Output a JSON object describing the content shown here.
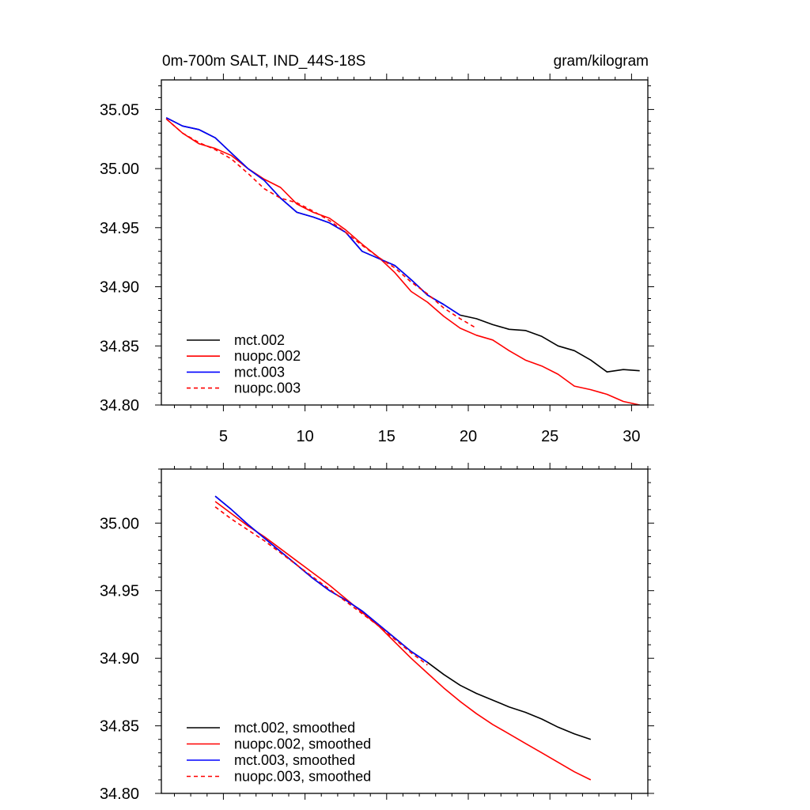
{
  "figure": {
    "title_left": "0m-700m SALT, IND_44S-18S",
    "title_right": "gram/kilogram"
  },
  "chart_data": [
    {
      "type": "line",
      "name": "raw",
      "xlim": [
        1.2,
        31
      ],
      "ylim": [
        34.8,
        35.075
      ],
      "x_ticks": [
        5,
        10,
        15,
        20,
        25,
        30
      ],
      "x_tick_labels": [
        "5",
        "10",
        "15",
        "20",
        "25",
        "30"
      ],
      "y_ticks": [
        34.8,
        34.85,
        34.9,
        34.95,
        35.0,
        35.05
      ],
      "y_tick_labels": [
        "34.80",
        "34.85",
        "34.90",
        "34.95",
        "35.00",
        "35.05"
      ],
      "legend_position": "bottom-left",
      "series": [
        {
          "name": "mct.002",
          "label": "mct.002",
          "color": "#000000",
          "dash": "solid",
          "x": [
            1.5,
            2.5,
            3.5,
            4.5,
            5.5,
            6.5,
            7.5,
            8.5,
            9.5,
            10.5,
            11.5,
            12.5,
            13.5,
            14.5,
            15.5,
            16.5,
            17.5,
            18.5,
            19.5,
            20.5,
            21.5,
            22.5,
            23.5,
            24.5,
            25.5,
            26.5,
            27.5,
            28.5,
            29.5,
            30.5
          ],
          "y": [
            35.043,
            35.036,
            35.033,
            35.026,
            35.013,
            35.0,
            34.99,
            34.975,
            34.963,
            34.959,
            34.954,
            34.946,
            34.93,
            34.924,
            34.918,
            34.906,
            34.893,
            34.885,
            34.876,
            34.873,
            34.868,
            34.864,
            34.863,
            34.858,
            34.85,
            34.846,
            34.838,
            34.828,
            34.83,
            34.829
          ]
        },
        {
          "name": "nuopc.002",
          "label": "nuopc.002",
          "color": "#ff0000",
          "dash": "solid",
          "x": [
            1.5,
            2.5,
            3.5,
            4.5,
            5.5,
            6.5,
            7.5,
            8.5,
            9.5,
            10.5,
            11.5,
            12.5,
            13.5,
            14.5,
            15.5,
            16.5,
            17.5,
            18.5,
            19.5,
            20.5,
            21.5,
            22.5,
            23.5,
            24.5,
            25.5,
            26.5,
            27.5,
            28.5,
            29.5,
            30.5
          ],
          "y": [
            35.042,
            35.03,
            35.021,
            35.017,
            35.011,
            35.0,
            34.991,
            34.984,
            34.97,
            34.963,
            34.958,
            34.948,
            34.936,
            34.925,
            34.912,
            34.896,
            34.887,
            34.875,
            34.865,
            34.859,
            34.855,
            34.846,
            34.838,
            34.833,
            34.826,
            34.816,
            34.813,
            34.809,
            34.803,
            34.8
          ]
        },
        {
          "name": "mct.003",
          "label": "mct.003",
          "color": "#0000ff",
          "dash": "solid",
          "x": [
            1.5,
            2.5,
            3.5,
            4.5,
            5.5,
            6.5,
            7.5,
            8.5,
            9.5,
            10.5,
            11.5,
            12.5,
            13.5,
            14.5,
            15.5,
            16.5,
            17.5,
            18.5,
            19.5
          ],
          "y": [
            35.043,
            35.036,
            35.033,
            35.026,
            35.013,
            35.0,
            34.99,
            34.975,
            34.963,
            34.959,
            34.954,
            34.946,
            34.93,
            34.924,
            34.918,
            34.906,
            34.893,
            34.885,
            34.876
          ]
        },
        {
          "name": "nuopc.003",
          "label": "nuopc.003",
          "color": "#ff0000",
          "dash": "dashed",
          "x": [
            1.5,
            2.5,
            3.5,
            4.5,
            5.5,
            6.5,
            7.5,
            8.5,
            9.5,
            10.5,
            11.5,
            12.5,
            13.5,
            14.5,
            15.5,
            16.5,
            17.5,
            18.5,
            19.5,
            20.5
          ],
          "y": [
            35.042,
            35.03,
            35.022,
            35.016,
            35.008,
            34.996,
            34.983,
            34.975,
            34.971,
            34.964,
            34.956,
            34.946,
            34.935,
            34.925,
            34.916,
            34.904,
            34.894,
            34.882,
            34.873,
            34.865
          ]
        }
      ]
    },
    {
      "type": "line",
      "name": "smoothed",
      "xlim": [
        1.2,
        31
      ],
      "ylim": [
        34.8,
        35.04
      ],
      "x_ticks": [
        5,
        10,
        15,
        20,
        25,
        30
      ],
      "y_ticks": [
        34.8,
        34.85,
        34.9,
        34.95,
        35.0
      ],
      "y_tick_labels": [
        "34.80",
        "34.85",
        "34.90",
        "34.95",
        "35.00"
      ],
      "legend_position": "bottom-left",
      "series": [
        {
          "name": "mct.002-smoothed",
          "label": "mct.002, smoothed",
          "color": "#000000",
          "dash": "solid",
          "x": [
            4.5,
            5.5,
            6.5,
            7.5,
            8.5,
            9.5,
            10.5,
            11.5,
            12.5,
            13.5,
            14.5,
            15.5,
            16.5,
            17.5,
            18.5,
            19.5,
            20.5,
            21.5,
            22.5,
            23.5,
            24.5,
            25.5,
            26.5,
            27.5
          ],
          "y": [
            35.02,
            35.01,
            34.999,
            34.989,
            34.979,
            34.969,
            34.959,
            34.95,
            34.943,
            34.935,
            34.925,
            34.915,
            34.905,
            34.897,
            34.888,
            34.88,
            34.874,
            34.869,
            34.864,
            34.86,
            34.855,
            34.849,
            34.844,
            34.84
          ]
        },
        {
          "name": "nuopc.002-smoothed",
          "label": "nuopc.002, smoothed",
          "color": "#ff0000",
          "dash": "solid",
          "x": [
            4.5,
            5.5,
            6.5,
            7.5,
            8.5,
            9.5,
            10.5,
            11.5,
            12.5,
            13.5,
            14.5,
            15.5,
            16.5,
            17.5,
            18.5,
            19.5,
            20.5,
            21.5,
            22.5,
            23.5,
            24.5,
            25.5,
            26.5,
            27.5
          ],
          "y": [
            35.016,
            35.007,
            34.998,
            34.99,
            34.981,
            34.972,
            34.963,
            34.954,
            34.944,
            34.934,
            34.924,
            34.912,
            34.9,
            34.889,
            34.878,
            34.868,
            34.859,
            34.851,
            34.844,
            34.837,
            34.83,
            34.823,
            34.816,
            34.81
          ]
        },
        {
          "name": "mct.003-smoothed",
          "label": "mct.003, smoothed",
          "color": "#0000ff",
          "dash": "solid",
          "x": [
            4.5,
            5.5,
            6.5,
            7.5,
            8.5,
            9.5,
            10.5,
            11.5,
            12.5,
            13.5,
            14.5,
            15.5,
            16.5,
            17.5
          ],
          "y": [
            35.02,
            35.01,
            34.999,
            34.989,
            34.979,
            34.969,
            34.959,
            34.95,
            34.943,
            34.935,
            34.925,
            34.915,
            34.905,
            34.897
          ]
        },
        {
          "name": "nuopc.003-smoothed",
          "label": "nuopc.003, smoothed",
          "color": "#ff0000",
          "dash": "dashed",
          "x": [
            4.5,
            5.5,
            6.5,
            7.5,
            8.5,
            9.5,
            10.5,
            11.5,
            12.5,
            13.5,
            14.5,
            15.5,
            16.5,
            17.5
          ],
          "y": [
            35.012,
            35.003,
            34.995,
            34.987,
            34.978,
            34.969,
            34.96,
            34.951,
            34.942,
            34.933,
            34.924,
            34.914,
            34.904,
            34.895
          ]
        }
      ]
    }
  ]
}
